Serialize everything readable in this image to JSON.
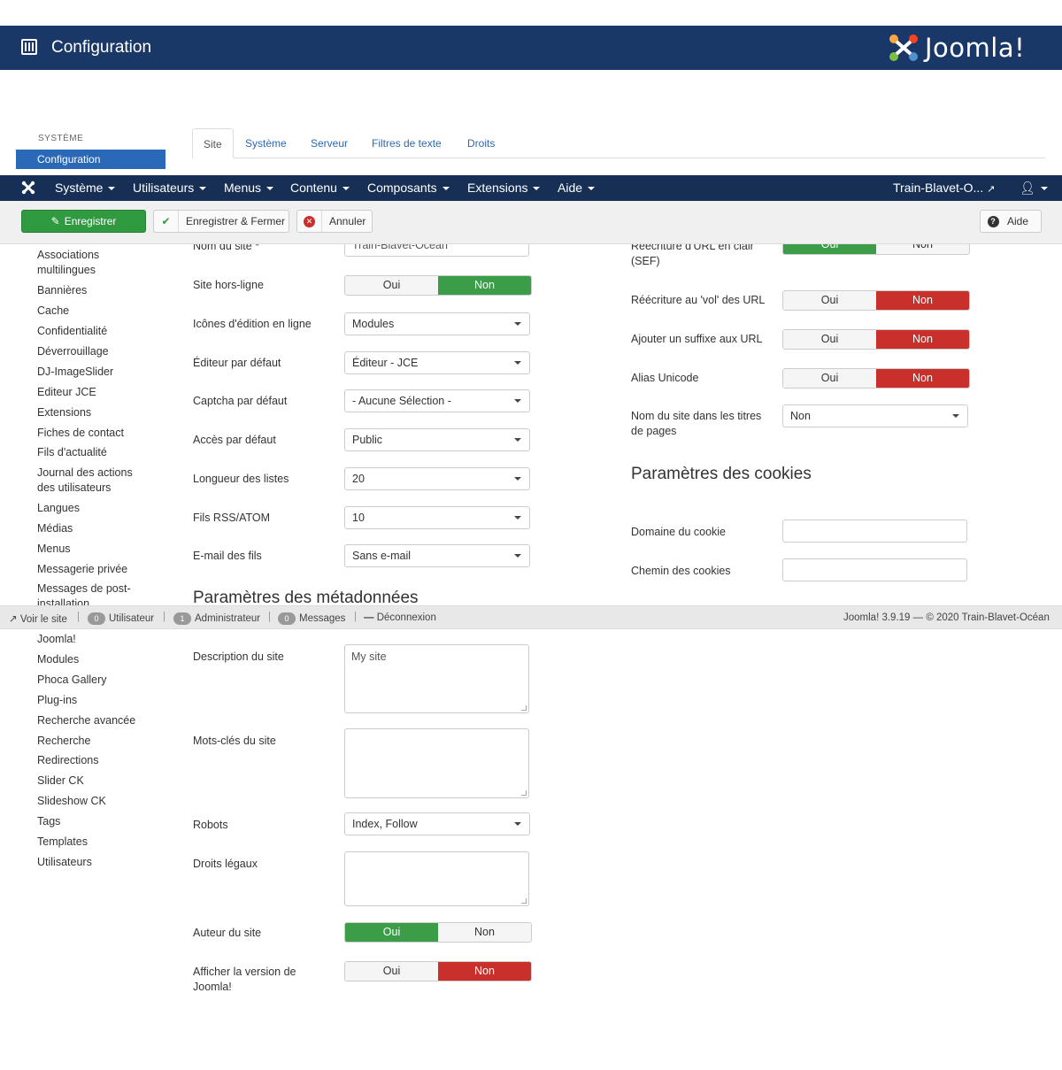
{
  "header": {
    "title": "Configuration",
    "logo_text": "Joomla!"
  },
  "sidebar_top": {
    "section": "SYSTÈME",
    "active": "Configuration"
  },
  "tabs": [
    "Site",
    "Système",
    "Serveur",
    "Filtres de texte",
    "Droits"
  ],
  "navbar": {
    "items": [
      "Système",
      "Utilisateurs",
      "Menus",
      "Contenu",
      "Composants",
      "Extensions",
      "Aide"
    ],
    "site_name": "Train-Blavet-O..."
  },
  "toolbar": {
    "save": "Enregistrer",
    "save_close": "Enregistrer & Fermer",
    "cancel": "Annuler",
    "help": "Aide"
  },
  "sidebar": {
    "items": [
      "Associations multilingues",
      "Bannières",
      "Cache",
      "Confidentialité",
      "Déverrouillage",
      "DJ-ImageSlider",
      "Editeur JCE",
      "Extensions",
      "Fiches de contact",
      "Fils d'actualité",
      "Journal des actions des utilisateurs",
      "Langues",
      "Médias",
      "Menus",
      "Messagerie privée",
      "Messages de post-installation",
      "Joomla!",
      "Modules",
      "Phoca Gallery",
      "Plug-ins",
      "Recherche avancée",
      "Recherche",
      "Redirections",
      "Slider CK",
      "Slideshow CK",
      "Tags",
      "Templates",
      "Utilisateurs"
    ]
  },
  "left_form": {
    "site_name": {
      "label": "Nom du site *",
      "value": "Train-Blavet-Ocean"
    },
    "offline": {
      "label": "Site hors-ligne",
      "yes": "Oui",
      "no": "Non"
    },
    "inline_edit": {
      "label": "Icônes d'édition en ligne",
      "value": "Modules"
    },
    "editor": {
      "label": "Éditeur par défaut",
      "value": "Éditeur - JCE"
    },
    "captcha": {
      "label": "Captcha par défaut",
      "value": "- Aucune Sélection -"
    },
    "access": {
      "label": "Accès par défaut",
      "value": "Public"
    },
    "list_length": {
      "label": "Longueur des listes",
      "value": "20"
    },
    "feed_limit": {
      "label": "Fils RSS/ATOM",
      "value": "10"
    },
    "feed_email": {
      "label": "E-mail des fils",
      "value": "Sans e-mail"
    },
    "metadata_heading": "Paramètres des métadonnées",
    "description": {
      "label": "Description du site",
      "value": "My site"
    },
    "keywords": {
      "label": "Mots-clés du site",
      "value": ""
    },
    "robots": {
      "label": "Robots",
      "value": "Index, Follow"
    },
    "rights": {
      "label": "Droits légaux",
      "value": ""
    },
    "author": {
      "label": "Auteur du site",
      "yes": "Oui",
      "no": "Non"
    },
    "show_version": {
      "label": "Afficher la version de Joomla!",
      "yes": "Oui",
      "no": "Non"
    }
  },
  "right_form": {
    "sef": {
      "label": "Réécriture d'URL en clair (SEF)",
      "yes": "Oui",
      "no": "Non"
    },
    "rewrite": {
      "label": "Réécriture au 'vol' des URL",
      "yes": "Oui",
      "no": "Non"
    },
    "suffix": {
      "label": "Ajouter un suffixe aux URL",
      "yes": "Oui",
      "no": "Non"
    },
    "unicode": {
      "label": "Alias Unicode",
      "yes": "Oui",
      "no": "Non"
    },
    "sitename_titles": {
      "label": "Nom du site dans les titres de pages",
      "value": "Non"
    },
    "cookies_heading": "Paramètres des cookies",
    "cookie_domain": {
      "label": "Domaine du cookie",
      "value": ""
    },
    "cookie_path": {
      "label": "Chemin des cookies",
      "value": ""
    }
  },
  "statusbar": {
    "view_site": "Voir le site",
    "users_count": "0",
    "users": "Utilisateur",
    "admins_count": "1",
    "admins": "Administrateur",
    "messages_count": "0",
    "messages": "Messages",
    "logout": "Déconnexion",
    "version": "Joomla! 3.9.19 — © 2020 Train-Blavet-Océan"
  },
  "colors": {
    "header": "#1a3867",
    "navbar": "#172f55",
    "green": "#3c9d49",
    "red": "#c9302c",
    "link": "#2a69b8"
  }
}
